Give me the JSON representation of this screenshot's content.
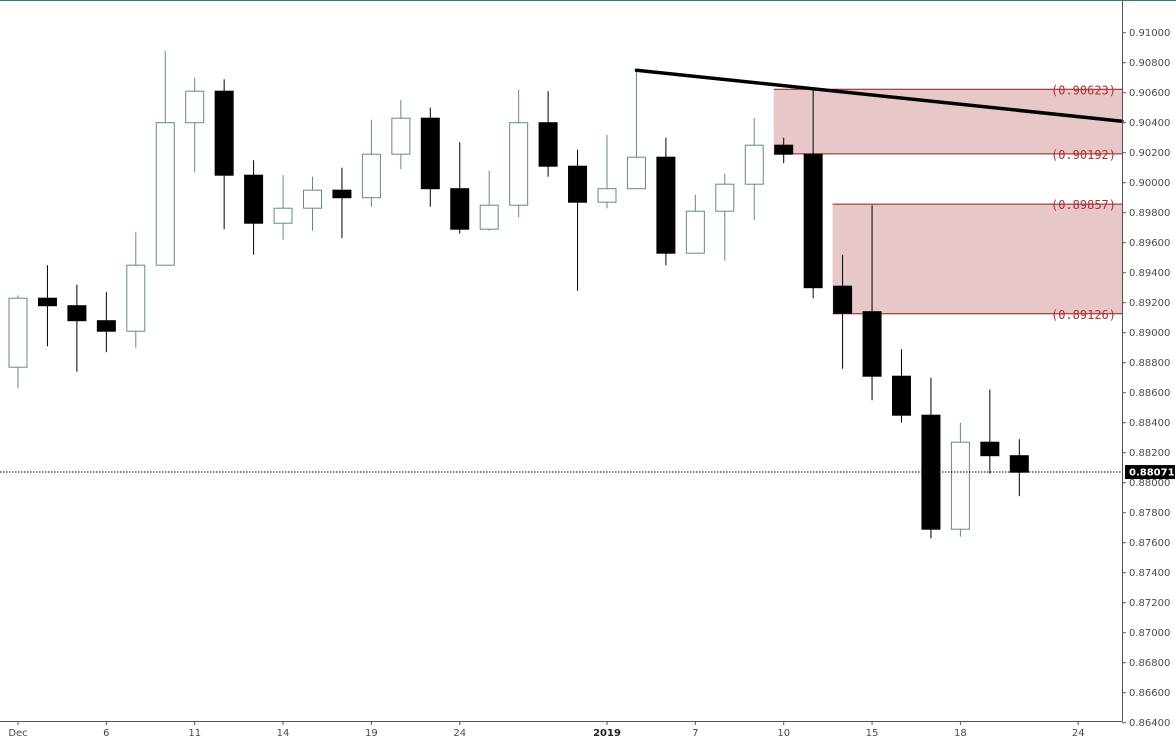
{
  "chart_data": {
    "type": "candlestick",
    "title": "",
    "colors": {
      "up_border": "#5b8f7e",
      "down_body": "#000000",
      "zone_fill": "#e8c7c9",
      "zone_border": "#8c1c1c",
      "zone_text": "#b03030",
      "trendline": "#000000",
      "top_border": "#2a7a86",
      "axis_line": "#555555",
      "price_tag_bg": "#000000"
    },
    "y_axis": {
      "position": "right",
      "min": 0.8635,
      "max": 0.9115,
      "ticks": [
        "0.91000",
        "0.90800",
        "0.90600",
        "0.90400",
        "0.90200",
        "0.90000",
        "0.89800",
        "0.89600",
        "0.89400",
        "0.89200",
        "0.89000",
        "0.88800",
        "0.88600",
        "0.88400",
        "0.88200",
        "0.88000",
        "0.87800",
        "0.87600",
        "0.87400",
        "0.87200",
        "0.87000",
        "0.86800",
        "0.86600",
        "0.86400"
      ]
    },
    "x_axis": {
      "tick_labels": [
        {
          "label": "Dec",
          "index": 0,
          "bold": false
        },
        {
          "label": "6",
          "index": 3,
          "bold": false
        },
        {
          "label": "11",
          "index": 6,
          "bold": false
        },
        {
          "label": "14",
          "index": 9,
          "bold": false
        },
        {
          "label": "19",
          "index": 12,
          "bold": false
        },
        {
          "label": "24",
          "index": 15,
          "bold": false
        },
        {
          "label": "2019",
          "index": 20,
          "bold": true
        },
        {
          "label": "7",
          "index": 23,
          "bold": false
        },
        {
          "label": "10",
          "index": 26,
          "bold": false
        },
        {
          "label": "15",
          "index": 29,
          "bold": false
        },
        {
          "label": "18",
          "index": 32,
          "bold": false
        },
        {
          "label": "24",
          "index": 36,
          "bold": false
        }
      ]
    },
    "candles": [
      {
        "o": 0.8877,
        "h": 0.8925,
        "l": 0.8863,
        "c": 0.8923
      },
      {
        "o": 0.8923,
        "h": 0.8945,
        "l": 0.8891,
        "c": 0.8918
      },
      {
        "o": 0.8918,
        "h": 0.8932,
        "l": 0.8874,
        "c": 0.8908
      },
      {
        "o": 0.8908,
        "h": 0.8927,
        "l": 0.8887,
        "c": 0.8901
      },
      {
        "o": 0.8901,
        "h": 0.8967,
        "l": 0.889,
        "c": 0.8945
      },
      {
        "o": 0.8945,
        "h": 0.9088,
        "l": 0.8945,
        "c": 0.904
      },
      {
        "o": 0.904,
        "h": 0.907,
        "l": 0.9007,
        "c": 0.9061
      },
      {
        "o": 0.9061,
        "h": 0.9069,
        "l": 0.8969,
        "c": 0.9005
      },
      {
        "o": 0.9005,
        "h": 0.9015,
        "l": 0.8952,
        "c": 0.8973
      },
      {
        "o": 0.8973,
        "h": 0.9005,
        "l": 0.8962,
        "c": 0.8983
      },
      {
        "o": 0.8983,
        "h": 0.9004,
        "l": 0.8968,
        "c": 0.8995
      },
      {
        "o": 0.8995,
        "h": 0.901,
        "l": 0.8963,
        "c": 0.899
      },
      {
        "o": 0.899,
        "h": 0.9042,
        "l": 0.8984,
        "c": 0.9019
      },
      {
        "o": 0.9019,
        "h": 0.9055,
        "l": 0.9009,
        "c": 0.9043
      },
      {
        "o": 0.9043,
        "h": 0.905,
        "l": 0.8984,
        "c": 0.8996
      },
      {
        "o": 0.8996,
        "h": 0.9027,
        "l": 0.8966,
        "c": 0.8969
      },
      {
        "o": 0.8969,
        "h": 0.9008,
        "l": 0.8968,
        "c": 0.8985
      },
      {
        "o": 0.8985,
        "h": 0.9062,
        "l": 0.8977,
        "c": 0.904
      },
      {
        "o": 0.904,
        "h": 0.9061,
        "l": 0.9004,
        "c": 0.9011
      },
      {
        "o": 0.9011,
        "h": 0.9022,
        "l": 0.8928,
        "c": 0.8987
      },
      {
        "o": 0.8987,
        "h": 0.9032,
        "l": 0.8983,
        "c": 0.8996
      },
      {
        "o": 0.8996,
        "h": 0.9075,
        "l": 0.8996,
        "c": 0.9017
      },
      {
        "o": 0.9017,
        "h": 0.903,
        "l": 0.8945,
        "c": 0.8953
      },
      {
        "o": 0.8953,
        "h": 0.8992,
        "l": 0.8953,
        "c": 0.8981
      },
      {
        "o": 0.8981,
        "h": 0.9006,
        "l": 0.8948,
        "c": 0.8999
      },
      {
        "o": 0.8999,
        "h": 0.9043,
        "l": 0.8975,
        "c": 0.9025
      },
      {
        "o": 0.9025,
        "h": 0.903,
        "l": 0.9013,
        "c": 0.9019
      },
      {
        "o": 0.9019,
        "h": 0.9062,
        "l": 0.8923,
        "c": 0.893
      },
      {
        "o": 0.8931,
        "h": 0.8952,
        "l": 0.8876,
        "c": 0.8913
      },
      {
        "o": 0.8914,
        "h": 0.8985,
        "l": 0.8855,
        "c": 0.8871
      },
      {
        "o": 0.8871,
        "h": 0.8889,
        "l": 0.884,
        "c": 0.8845
      },
      {
        "o": 0.8845,
        "h": 0.887,
        "l": 0.8763,
        "c": 0.8769
      },
      {
        "o": 0.8769,
        "h": 0.884,
        "l": 0.8764,
        "c": 0.8827
      },
      {
        "o": 0.8827,
        "h": 0.8862,
        "l": 0.8806,
        "c": 0.8818
      },
      {
        "o": 0.8818,
        "h": 0.8829,
        "l": 0.8791,
        "c": 0.8807
      }
    ],
    "zones": [
      {
        "name": "upper-zone",
        "top": 0.90623,
        "bottom": 0.90192,
        "top_label": "(0.90623)",
        "bottom_label": "(0.90192)",
        "start_index": 26
      },
      {
        "name": "lower-zone",
        "top": 0.89857,
        "bottom": 0.89126,
        "top_label": "(0.89857)",
        "bottom_label": "(0.89126)",
        "start_index": 28
      }
    ],
    "trendline": {
      "start_index": 21,
      "start_price": 0.9075,
      "end_price": 0.9041
    },
    "current_price": {
      "value": 0.88071,
      "label": "0.88071"
    }
  }
}
